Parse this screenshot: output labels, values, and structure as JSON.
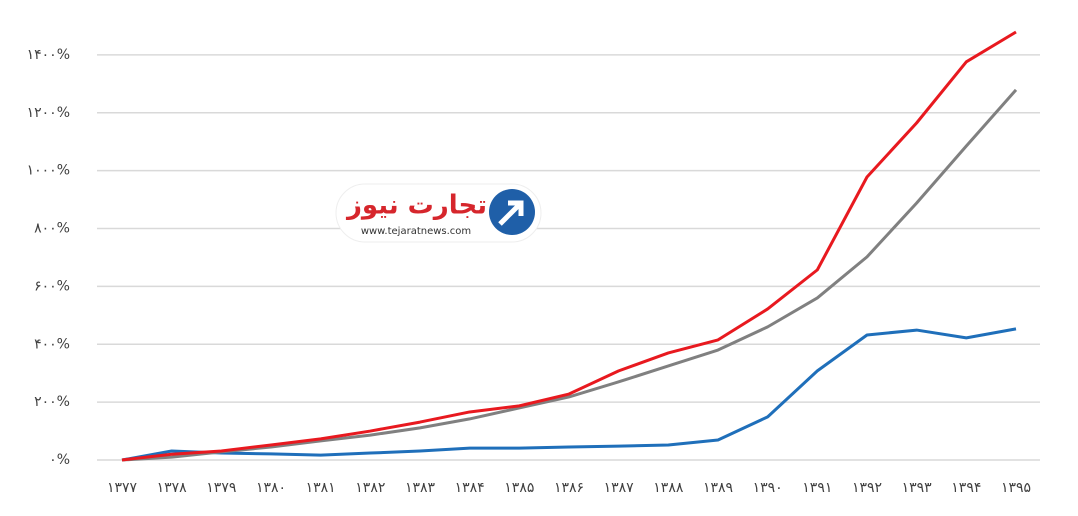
{
  "chart_data": {
    "type": "line",
    "categories": [
      "۱۳۷۷",
      "۱۳۷۸",
      "۱۳۷۹",
      "۱۳۸۰",
      "۱۳۸۱",
      "۱۳۸۲",
      "۱۳۸۳",
      "۱۳۸۴",
      "۱۳۸۵",
      "۱۳۸۶",
      "۱۳۸۷",
      "۱۳۸۸",
      "۱۳۸۹",
      "۱۳۹۰",
      "۱۳۹۱",
      "۱۳۹۲",
      "۱۳۹۳",
      "۱۳۹۴",
      "۱۳۹۵"
    ],
    "series": [
      {
        "color": "#e8191f",
        "values": [
          0,
          20,
          31,
          52,
          73,
          100,
          131,
          166,
          187,
          228,
          308,
          370,
          415,
          522,
          657,
          978,
          1165,
          1376,
          1479
        ]
      },
      {
        "color": "#808080",
        "values": [
          0,
          10,
          28,
          45,
          66,
          86,
          111,
          142,
          180,
          218,
          270,
          325,
          380,
          460,
          560,
          702,
          888,
          1085,
          1279
        ]
      },
      {
        "color": "#1f6fba",
        "values": [
          0,
          31,
          24,
          21,
          17,
          24,
          31,
          41,
          41,
          45,
          48,
          52,
          69,
          149,
          308,
          432,
          449,
          422,
          453
        ]
      }
    ],
    "ylim": [
      0,
      1600
    ],
    "yticks": [
      {
        "value": 0,
        "label": "۰%"
      },
      {
        "value": 200,
        "label": "۲۰۰%"
      },
      {
        "value": 400,
        "label": "۴۰۰%"
      },
      {
        "value": 600,
        "label": "۶۰۰%"
      },
      {
        "value": 800,
        "label": "۸۰۰%"
      },
      {
        "value": 1000,
        "label": "۱۰۰۰%"
      },
      {
        "value": 1200,
        "label": "۱۲۰۰%"
      },
      {
        "value": 1400,
        "label": "۱۴۰۰%"
      }
    ],
    "grid": true,
    "watermark": {
      "title": "تجارت نیوز",
      "url": "www.tejaratnews.com"
    }
  }
}
